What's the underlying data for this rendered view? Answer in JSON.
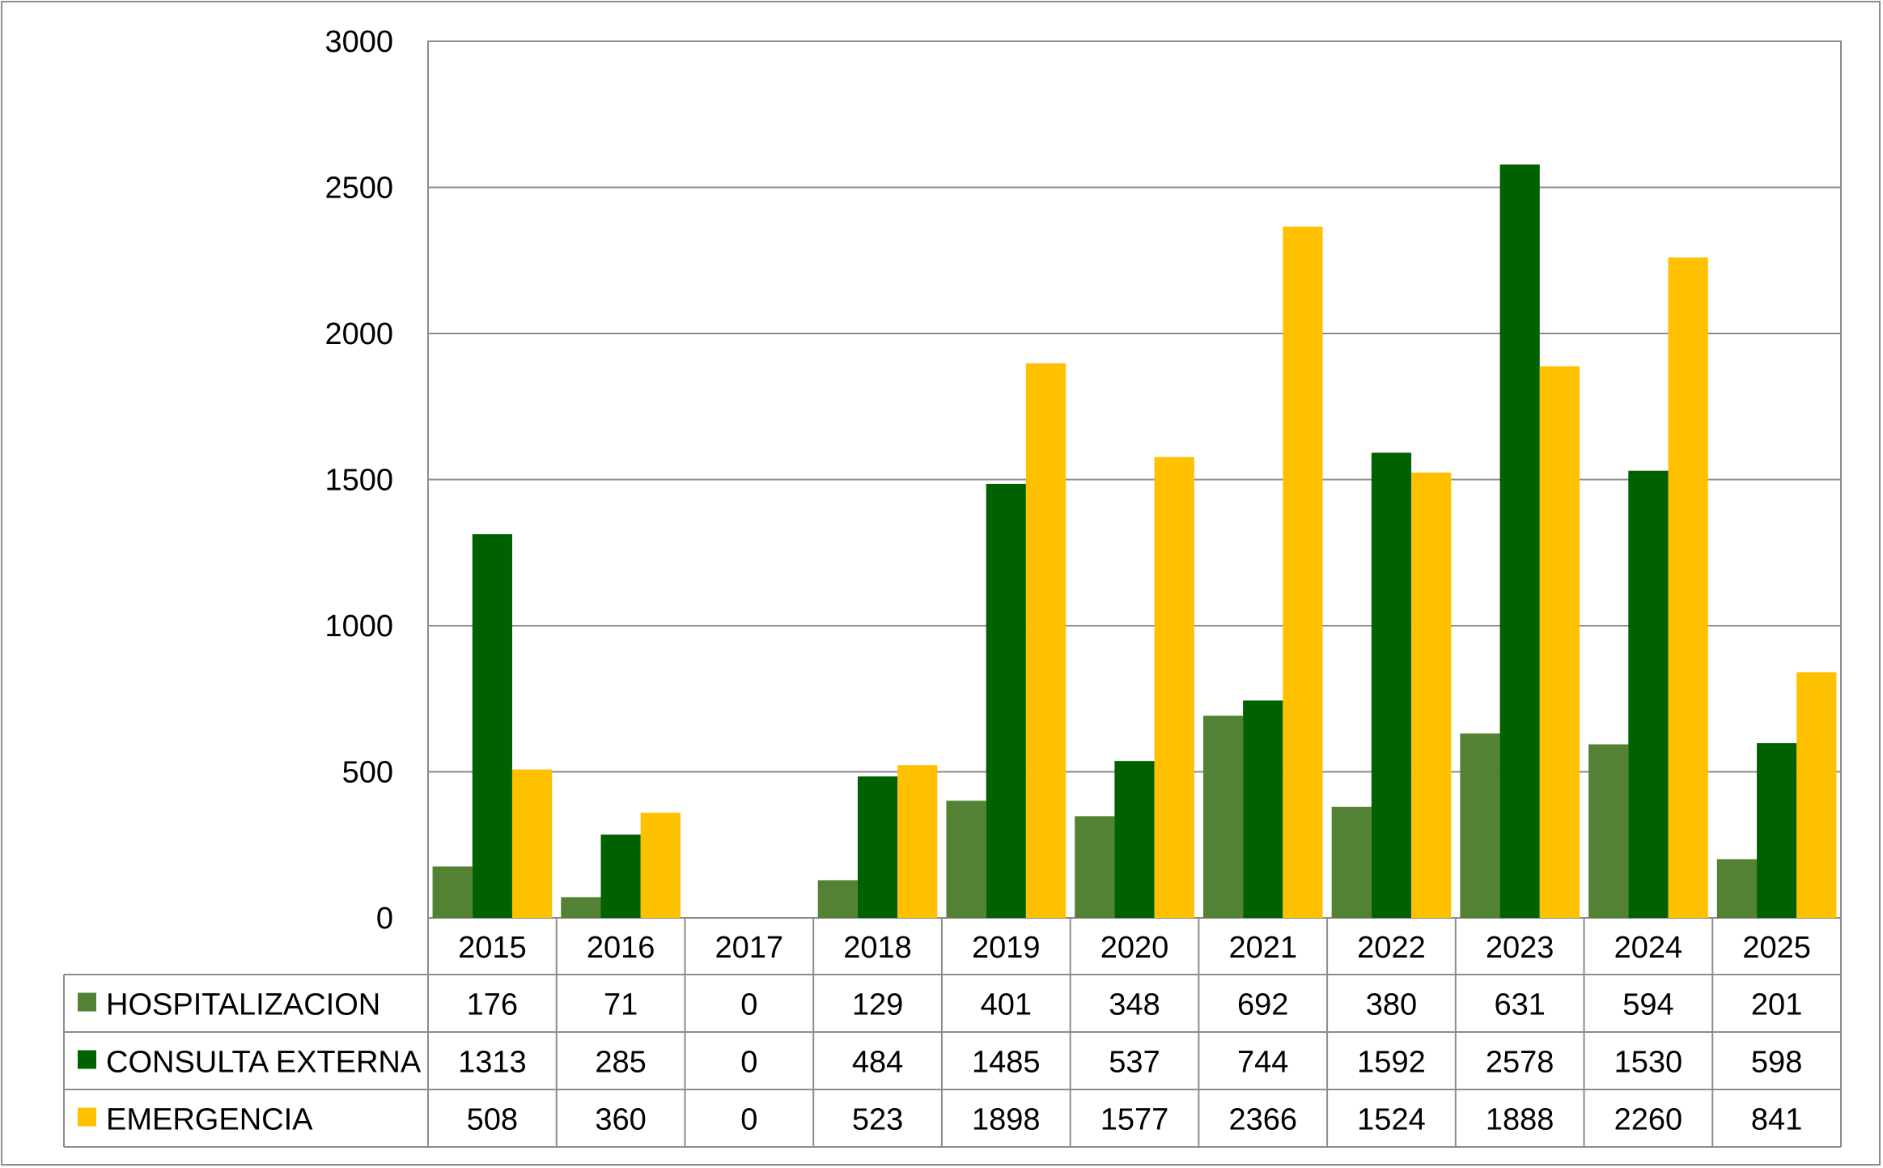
{
  "chart_data": {
    "type": "bar",
    "categories": [
      "2015",
      "2016",
      "2017",
      "2018",
      "2019",
      "2020",
      "2021",
      "2022",
      "2023",
      "2024",
      "2025"
    ],
    "series": [
      {
        "name": "HOSPITALIZACION",
        "color": "#548235",
        "values": [
          176,
          71,
          0,
          129,
          401,
          348,
          692,
          380,
          631,
          594,
          201
        ]
      },
      {
        "name": "CONSULTA EXTERNA",
        "color": "#006100",
        "values": [
          1313,
          285,
          0,
          484,
          1485,
          537,
          744,
          1592,
          2578,
          1530,
          598
        ]
      },
      {
        "name": "EMERGENCIA",
        "color": "#FFC000",
        "values": [
          508,
          360,
          0,
          523,
          1898,
          1577,
          2366,
          1524,
          1888,
          2260,
          841
        ]
      }
    ],
    "ylim": [
      0,
      3000
    ],
    "yticks": [
      0,
      500,
      1000,
      1500,
      2000,
      2500,
      3000
    ],
    "grid": true,
    "legend": "data-table",
    "title": "",
    "xlabel": "",
    "ylabel": ""
  }
}
